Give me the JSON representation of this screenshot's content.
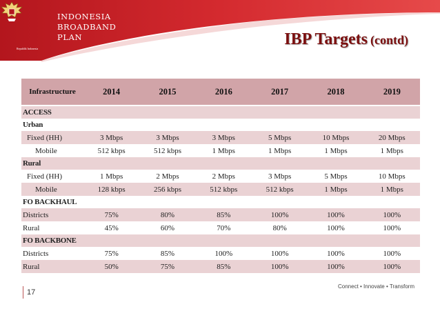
{
  "brand": {
    "line1": "INDONESIA",
    "line2": "BROADBAND",
    "line3": "PLAN",
    "emblem_caption": "Republik Indonesia"
  },
  "slide": {
    "title": "IBP Targets",
    "title_suffix": "(contd)",
    "page": "17",
    "footer": "Connect • Innovate • Transform"
  },
  "colors": {
    "banner_red": "#c21d24",
    "title_red": "#7b0f0f",
    "header_pink": "#d1a4a8",
    "row_pink": "#ead2d4"
  },
  "table": {
    "header": [
      "Infrastructure",
      "2014",
      "2015",
      "2016",
      "2017",
      "2018",
      "2019"
    ],
    "sections": {
      "access": "ACCESS",
      "urban": "Urban",
      "rural": "Rural",
      "fo_backhaul": "FO BACKHAUL",
      "fo_backbone": "FO BACKBONE"
    },
    "urban_fixed": [
      "Fixed (HH)",
      "3 Mbps",
      "3 Mbps",
      "3 Mbps",
      "5 Mbps",
      "10 Mbps",
      "20 Mbps"
    ],
    "urban_mobile": [
      "Mobile",
      "512 kbps",
      "512 kbps",
      "1 Mbps",
      "1 Mbps",
      "1 Mbps",
      "1 Mbps"
    ],
    "rural_fixed": [
      "Fixed (HH)",
      "1 Mbps",
      "2 Mbps",
      "2 Mbps",
      "3 Mbps",
      "5 Mbps",
      "10 Mbps"
    ],
    "rural_mobile": [
      "Mobile",
      "128 kbps",
      "256 kbps",
      "512 kbps",
      "512 kbps",
      "1 Mbps",
      "1 Mbps"
    ],
    "backhaul_districts": [
      "Districts",
      "75%",
      "80%",
      "85%",
      "100%",
      "100%",
      "100%"
    ],
    "backhaul_rural": [
      "Rural",
      "45%",
      "60%",
      "70%",
      "80%",
      "100%",
      "100%"
    ],
    "backbone_districts": [
      "Districts",
      "75%",
      "85%",
      "100%",
      "100%",
      "100%",
      "100%"
    ],
    "backbone_rural": [
      "Rural",
      "50%",
      "75%",
      "85%",
      "100%",
      "100%",
      "100%"
    ]
  }
}
